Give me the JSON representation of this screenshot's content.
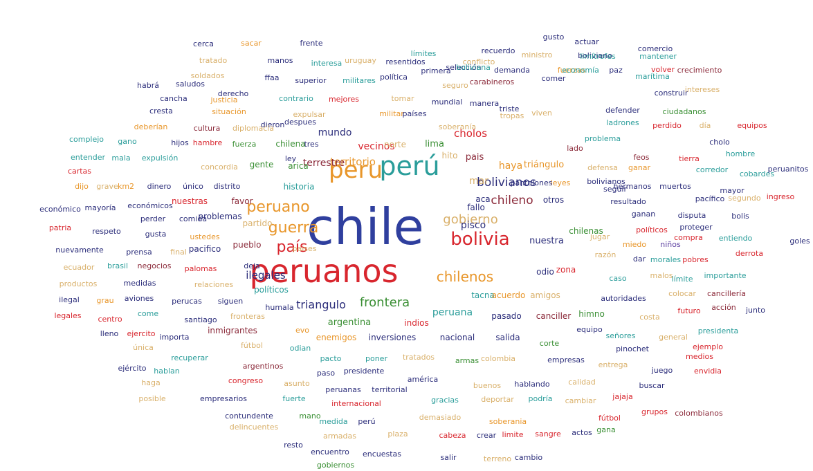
{
  "palette": {
    "blue": "#2f3f9e",
    "red": "#d8262e",
    "orange": "#e8962a",
    "teal": "#2a9d9a",
    "green": "#3a8f34",
    "navy": "#2b2d7a",
    "purple": "#5b3fa0",
    "maroon": "#8b2a3a",
    "olive": "#8a8f2a",
    "tan": "#d9b06a",
    "sky": "#3a8fc9",
    "dark": "#3a3a3a"
  },
  "words": [
    {
      "text": "chile",
      "color": "blue"
    },
    {
      "text": "peruanos",
      "color": "red"
    },
    {
      "text": "perú",
      "color": "teal"
    },
    {
      "text": "peru",
      "color": "orange"
    },
    {
      "text": "bolivia",
      "color": "red"
    },
    {
      "text": "peruano",
      "color": "orange"
    },
    {
      "text": "guerra",
      "color": "orange"
    },
    {
      "text": "país",
      "color": "red"
    },
    {
      "text": "chilenos",
      "color": "orange"
    },
    {
      "text": "gobierno",
      "color": "tan"
    },
    {
      "text": "chileno",
      "color": "maroon"
    },
    {
      "text": "bolivianos",
      "color": "navy"
    },
    {
      "text": "frontera",
      "color": "green"
    },
    {
      "text": "triangulo",
      "color": "navy"
    },
    {
      "text": "territorio",
      "color": "orange"
    },
    {
      "text": "cholos",
      "color": "red"
    },
    {
      "text": "mundo",
      "color": "navy"
    },
    {
      "text": "vecinos",
      "color": "red"
    },
    {
      "text": "terrestre",
      "color": "maroon"
    },
    {
      "text": "haya",
      "color": "orange"
    },
    {
      "text": "mar",
      "color": "tan"
    },
    {
      "text": "peruana",
      "color": "teal"
    },
    {
      "text": "pisco",
      "color": "navy"
    },
    {
      "text": "nuestra",
      "color": "navy"
    },
    {
      "text": "triángulo",
      "color": "orange"
    },
    {
      "text": "lima",
      "color": "green"
    },
    {
      "text": "pais",
      "color": "maroon"
    },
    {
      "text": "chilena",
      "color": "green"
    },
    {
      "text": "gente",
      "color": "green"
    },
    {
      "text": "arica",
      "color": "green"
    },
    {
      "text": "historia",
      "color": "teal"
    },
    {
      "text": "ilegales",
      "color": "navy"
    },
    {
      "text": "norte",
      "color": "tan"
    },
    {
      "text": "hito",
      "color": "tan"
    },
    {
      "text": "otros",
      "color": "navy"
    },
    {
      "text": "pacifico",
      "color": "navy"
    },
    {
      "text": "pueblo",
      "color": "maroon"
    },
    {
      "text": "partido",
      "color": "tan"
    },
    {
      "text": "problemas",
      "color": "navy"
    },
    {
      "text": "nuestras",
      "color": "red"
    },
    {
      "text": "favor",
      "color": "maroon"
    },
    {
      "text": "aca",
      "color": "navy"
    },
    {
      "text": "fallo",
      "color": "navy"
    },
    {
      "text": "odio",
      "color": "navy"
    },
    {
      "text": "zona",
      "color": "red"
    },
    {
      "text": "tacna",
      "color": "teal"
    },
    {
      "text": "acuerdo",
      "color": "orange"
    },
    {
      "text": "amigos",
      "color": "tan"
    },
    {
      "text": "argentina",
      "color": "green"
    },
    {
      "text": "indios",
      "color": "red"
    },
    {
      "text": "pasado",
      "color": "navy"
    },
    {
      "text": "canciller",
      "color": "maroon"
    },
    {
      "text": "himno",
      "color": "green"
    },
    {
      "text": "inversiones",
      "color": "navy"
    },
    {
      "text": "nacional",
      "color": "navy"
    },
    {
      "text": "salida",
      "color": "navy"
    },
    {
      "text": "enemigos",
      "color": "orange"
    },
    {
      "text": "inmigrantes",
      "color": "maroon"
    },
    {
      "text": "evo",
      "color": "orange"
    },
    {
      "text": "humala",
      "color": "navy"
    },
    {
      "text": "políticos",
      "color": "teal"
    },
    {
      "text": "paises",
      "color": "tan"
    },
    {
      "text": "chilenas",
      "color": "green"
    },
    {
      "text": "políticos ",
      "color": "red"
    },
    {
      "text": "proteger",
      "color": "navy"
    },
    {
      "text": "compra",
      "color": "red"
    },
    {
      "text": "entiendo",
      "color": "teal"
    },
    {
      "text": "miedo",
      "color": "orange"
    },
    {
      "text": "niños",
      "color": "purple"
    },
    {
      "text": "razón",
      "color": "tan"
    },
    {
      "text": "dar",
      "color": "navy"
    },
    {
      "text": "morales",
      "color": "teal"
    },
    {
      "text": "pobres",
      "color": "red"
    },
    {
      "text": "derrota",
      "color": "red"
    },
    {
      "text": "jugar",
      "color": "tan"
    },
    {
      "text": "caso",
      "color": "teal"
    },
    {
      "text": "malos",
      "color": "tan"
    },
    {
      "text": "límite",
      "color": "teal"
    },
    {
      "text": "importante",
      "color": "teal"
    },
    {
      "text": "autoridades",
      "color": "navy"
    },
    {
      "text": "colocar",
      "color": "tan"
    },
    {
      "text": "cancillería",
      "color": "maroon"
    },
    {
      "text": "acción",
      "color": "maroon"
    },
    {
      "text": "junto",
      "color": "navy"
    },
    {
      "text": "futuro",
      "color": "red"
    },
    {
      "text": "costa",
      "color": "tan"
    },
    {
      "text": "presidenta",
      "color": "teal"
    },
    {
      "text": "equipo",
      "color": "navy"
    },
    {
      "text": "señores",
      "color": "teal"
    },
    {
      "text": "general",
      "color": "tan"
    },
    {
      "text": "ejemplo",
      "color": "red"
    },
    {
      "text": "corte",
      "color": "green"
    },
    {
      "text": "pinochet",
      "color": "navy"
    },
    {
      "text": "medios",
      "color": "red"
    },
    {
      "text": "empresas",
      "color": "navy"
    },
    {
      "text": "entrega",
      "color": "tan"
    },
    {
      "text": "juego",
      "color": "navy"
    },
    {
      "text": "envidia",
      "color": "red"
    },
    {
      "text": "calidad",
      "color": "tan"
    },
    {
      "text": "buscar",
      "color": "navy"
    },
    {
      "text": "jajaja",
      "color": "red"
    },
    {
      "text": "grupos",
      "color": "red"
    },
    {
      "text": "colombianos",
      "color": "maroon"
    },
    {
      "text": "fútbol",
      "color": "red"
    },
    {
      "text": "gana",
      "color": "green"
    },
    {
      "text": "actos",
      "color": "navy"
    },
    {
      "text": "sangre",
      "color": "red"
    },
    {
      "text": "limite",
      "color": "red"
    },
    {
      "text": "cabeza",
      "color": "red"
    },
    {
      "text": "crear",
      "color": "navy"
    },
    {
      "text": "cambio",
      "color": "navy"
    },
    {
      "text": "terreno",
      "color": "tan"
    },
    {
      "text": "salir",
      "color": "navy"
    },
    {
      "text": "encuestas",
      "color": "navy"
    },
    {
      "text": "encuentro",
      "color": "navy"
    },
    {
      "text": "gobiernos",
      "color": "green"
    },
    {
      "text": "resto",
      "color": "navy"
    },
    {
      "text": "armadas",
      "color": "tan"
    },
    {
      "text": "plaza",
      "color": "tan"
    },
    {
      "text": "delincuentes",
      "color": "tan"
    },
    {
      "text": "medida",
      "color": "teal"
    },
    {
      "text": "perú ",
      "color": "navy"
    },
    {
      "text": "demasiado",
      "color": "tan"
    },
    {
      "text": "soberania",
      "color": "orange"
    },
    {
      "text": "contundente",
      "color": "navy"
    },
    {
      "text": "mano",
      "color": "green"
    },
    {
      "text": "internacional",
      "color": "red"
    },
    {
      "text": "gracias",
      "color": "teal"
    },
    {
      "text": "deportar",
      "color": "tan"
    },
    {
      "text": "podría",
      "color": "teal"
    },
    {
      "text": "cambiar",
      "color": "tan"
    },
    {
      "text": "empresarios",
      "color": "navy"
    },
    {
      "text": "fuerte",
      "color": "teal"
    },
    {
      "text": "peruanas",
      "color": "navy"
    },
    {
      "text": "territorial",
      "color": "navy"
    },
    {
      "text": "buenos",
      "color": "tan"
    },
    {
      "text": "hablando",
      "color": "navy"
    },
    {
      "text": "posible",
      "color": "tan"
    },
    {
      "text": "congreso",
      "color": "red"
    },
    {
      "text": "asunto",
      "color": "tan"
    },
    {
      "text": "paso",
      "color": "navy"
    },
    {
      "text": "presidente",
      "color": "navy"
    },
    {
      "text": "américa",
      "color": "navy"
    },
    {
      "text": "haga",
      "color": "tan"
    },
    {
      "text": "argentinos",
      "color": "maroon"
    },
    {
      "text": "pacto",
      "color": "teal"
    },
    {
      "text": "poner",
      "color": "teal"
    },
    {
      "text": "tratados",
      "color": "tan"
    },
    {
      "text": "armas",
      "color": "green"
    },
    {
      "text": "colombia",
      "color": "tan"
    },
    {
      "text": "ejército",
      "color": "navy"
    },
    {
      "text": "hablan",
      "color": "teal"
    },
    {
      "text": "recuperar",
      "color": "teal"
    },
    {
      "text": "odian",
      "color": "teal"
    },
    {
      "text": "única",
      "color": "tan"
    },
    {
      "text": "fútbol ",
      "color": "tan"
    },
    {
      "text": "lleno",
      "color": "navy"
    },
    {
      "text": "ejercito",
      "color": "red"
    },
    {
      "text": "importa",
      "color": "navy"
    },
    {
      "text": "legales",
      "color": "red"
    },
    {
      "text": "centro",
      "color": "red"
    },
    {
      "text": "come",
      "color": "teal"
    },
    {
      "text": "santiago",
      "color": "navy"
    },
    {
      "text": "fronteras",
      "color": "tan"
    },
    {
      "text": "ilegal",
      "color": "navy"
    },
    {
      "text": "grau",
      "color": "orange"
    },
    {
      "text": "aviones",
      "color": "navy"
    },
    {
      "text": "perucas",
      "color": "navy"
    },
    {
      "text": "siguen",
      "color": "navy"
    },
    {
      "text": "productos",
      "color": "tan"
    },
    {
      "text": "medidas",
      "color": "navy"
    },
    {
      "text": "relaciones",
      "color": "tan"
    },
    {
      "text": "ecuador",
      "color": "tan"
    },
    {
      "text": "brasil",
      "color": "teal"
    },
    {
      "text": "negocios",
      "color": "maroon"
    },
    {
      "text": "palomas",
      "color": "red"
    },
    {
      "text": "deja",
      "color": "navy"
    },
    {
      "text": "nuevamente",
      "color": "navy"
    },
    {
      "text": "prensa",
      "color": "navy"
    },
    {
      "text": "final",
      "color": "tan"
    },
    {
      "text": "patria",
      "color": "red"
    },
    {
      "text": "respeto",
      "color": "navy"
    },
    {
      "text": "gusta",
      "color": "navy"
    },
    {
      "text": "ustedes",
      "color": "orange"
    },
    {
      "text": "económico",
      "color": "navy"
    },
    {
      "text": "mayoría",
      "color": "navy"
    },
    {
      "text": "económicos",
      "color": "navy"
    },
    {
      "text": "perder",
      "color": "navy"
    },
    {
      "text": "comida",
      "color": "navy"
    },
    {
      "text": "dijo",
      "color": "orange"
    },
    {
      "text": "grave",
      "color": "tan"
    },
    {
      "text": "km2",
      "color": "orange"
    },
    {
      "text": "dinero",
      "color": "navy"
    },
    {
      "text": "único",
      "color": "navy"
    },
    {
      "text": "distrito",
      "color": "navy"
    },
    {
      "text": "cartas",
      "color": "red"
    },
    {
      "text": "entender",
      "color": "teal"
    },
    {
      "text": "mala",
      "color": "teal"
    },
    {
      "text": "expulsión",
      "color": "teal"
    },
    {
      "text": "concordia",
      "color": "tan"
    },
    {
      "text": "complejo",
      "color": "teal"
    },
    {
      "text": "gano",
      "color": "teal"
    },
    {
      "text": "hijos",
      "color": "navy"
    },
    {
      "text": "hambre",
      "color": "red"
    },
    {
      "text": "fuerza",
      "color": "green"
    },
    {
      "text": "ley",
      "color": "navy"
    },
    {
      "text": "tres",
      "color": "navy"
    },
    {
      "text": "dieron",
      "color": "navy"
    },
    {
      "text": "despues",
      "color": "navy"
    },
    {
      "text": "deberían",
      "color": "orange"
    },
    {
      "text": "cultura",
      "color": "maroon"
    },
    {
      "text": "diplomacia",
      "color": "tan"
    },
    {
      "text": "expulsar",
      "color": "tan"
    },
    {
      "text": "militar",
      "color": "orange"
    },
    {
      "text": "países",
      "color": "navy"
    },
    {
      "text": "soberanía",
      "color": "tan"
    },
    {
      "text": "tropas",
      "color": "tan"
    },
    {
      "text": "lado",
      "color": "maroon"
    },
    {
      "text": "problema",
      "color": "teal"
    },
    {
      "text": "feos",
      "color": "maroon"
    },
    {
      "text": "defensa",
      "color": "tan"
    },
    {
      "text": "leyes",
      "color": "orange"
    },
    {
      "text": "bolivianos ",
      "color": "navy"
    },
    {
      "text": "seguir",
      "color": "navy"
    },
    {
      "text": "ganar",
      "color": "orange"
    },
    {
      "text": "pantalones",
      "color": "navy"
    },
    {
      "text": "hermanos",
      "color": "navy"
    },
    {
      "text": "muertos",
      "color": "navy"
    },
    {
      "text": "resultado",
      "color": "navy"
    },
    {
      "text": "ganan",
      "color": "navy"
    },
    {
      "text": "disputa",
      "color": "navy"
    },
    {
      "text": "bolis",
      "color": "navy"
    },
    {
      "text": "goles",
      "color": "navy"
    },
    {
      "text": "pacífico",
      "color": "navy"
    },
    {
      "text": "segundo",
      "color": "tan"
    },
    {
      "text": "ingreso",
      "color": "red"
    },
    {
      "text": "mayor",
      "color": "navy"
    },
    {
      "text": "cobardes",
      "color": "teal"
    },
    {
      "text": "peruanitos",
      "color": "navy"
    },
    {
      "text": "corredor",
      "color": "teal"
    },
    {
      "text": "hombre",
      "color": "teal"
    },
    {
      "text": "tierra",
      "color": "red"
    },
    {
      "text": "cholo",
      "color": "navy"
    },
    {
      "text": "día",
      "color": "tan"
    },
    {
      "text": "equipos",
      "color": "red"
    },
    {
      "text": "perdido",
      "color": "red"
    },
    {
      "text": "ciudadanos",
      "color": "green"
    },
    {
      "text": "defender",
      "color": "navy"
    },
    {
      "text": "ladrones",
      "color": "teal"
    },
    {
      "text": "construir",
      "color": "navy"
    },
    {
      "text": "intereses",
      "color": "tan"
    },
    {
      "text": "triste",
      "color": "navy"
    },
    {
      "text": "viven",
      "color": "tan"
    },
    {
      "text": "manera",
      "color": "navy"
    },
    {
      "text": "mundial",
      "color": "navy"
    },
    {
      "text": "tomar",
      "color": "tan"
    },
    {
      "text": "mejores",
      "color": "red"
    },
    {
      "text": "contrario",
      "color": "teal"
    },
    {
      "text": "derecho",
      "color": "navy"
    },
    {
      "text": "cancha",
      "color": "navy"
    },
    {
      "text": "situación",
      "color": "orange"
    },
    {
      "text": "cresta",
      "color": "navy"
    },
    {
      "text": "justicia",
      "color": "orange"
    },
    {
      "text": "habrá",
      "color": "navy"
    },
    {
      "text": "saludos",
      "color": "navy"
    },
    {
      "text": "soldados",
      "color": "tan"
    },
    {
      "text": "ffaa",
      "color": "navy"
    },
    {
      "text": "superior",
      "color": "navy"
    },
    {
      "text": "militares",
      "color": "teal"
    },
    {
      "text": "política",
      "color": "navy"
    },
    {
      "text": "seguro",
      "color": "tan"
    },
    {
      "text": "carabineros",
      "color": "maroon"
    },
    {
      "text": "comer",
      "color": "navy"
    },
    {
      "text": "fuerzas",
      "color": "orange"
    },
    {
      "text": "economía",
      "color": "teal"
    },
    {
      "text": "marítima",
      "color": "teal"
    },
    {
      "text": "demanda",
      "color": "navy"
    },
    {
      "text": "selección",
      "color": "navy"
    },
    {
      "text": "paz",
      "color": "navy"
    },
    {
      "text": "volver",
      "color": "red"
    },
    {
      "text": "crecimiento",
      "color": "maroon"
    },
    {
      "text": "boliviana",
      "color": "teal"
    },
    {
      "text": "primera",
      "color": "navy"
    },
    {
      "text": "tratado",
      "color": "tan"
    },
    {
      "text": "manos",
      "color": "navy"
    },
    {
      "text": "interesa",
      "color": "teal"
    },
    {
      "text": "uruguay",
      "color": "tan"
    },
    {
      "text": "resentidos",
      "color": "navy"
    },
    {
      "text": "conflicto",
      "color": "tan"
    },
    {
      "text": "ministro",
      "color": "tan"
    },
    {
      "text": "boliviano",
      "color": "navy"
    },
    {
      "text": "límites",
      "color": "teal"
    },
    {
      "text": "recuerdo",
      "color": "navy"
    },
    {
      "text": "limítrofes",
      "color": "teal"
    },
    {
      "text": "mantener",
      "color": "teal"
    },
    {
      "text": "gusto",
      "color": "navy"
    },
    {
      "text": "actuar",
      "color": "navy"
    },
    {
      "text": "comercio",
      "color": "navy"
    },
    {
      "text": "cerca",
      "color": "navy"
    },
    {
      "text": "sacar",
      "color": "orange"
    },
    {
      "text": "frente",
      "color": "navy"
    }
  ]
}
